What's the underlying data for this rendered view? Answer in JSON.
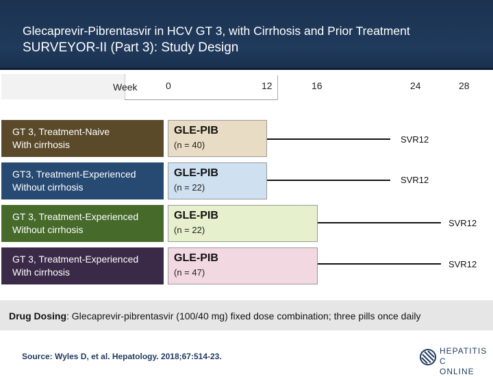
{
  "header": {
    "title_line1": "Glecaprevir-Pibrentasvir in HCV GT 3, with Cirrhosis and Prior Treatment",
    "title_line2": "SURVEYOR-II (Part 3): Study Design"
  },
  "timeline": {
    "label": "Week",
    "ticks": [
      "0",
      "12",
      "16",
      "24",
      "28"
    ]
  },
  "rows": [
    {
      "line1": "GT 3, Treatment-Naive",
      "line2": "With cirrhosis",
      "drug": "GLE-PIB",
      "n": "(n = 40)",
      "svr": "SVR12",
      "label_color": "#5a4a2a",
      "bar_color": "#e8dcc4"
    },
    {
      "line1": "GT3, Treatment-Experienced",
      "line2": "Without cirrhosis",
      "drug": "GLE-PIB",
      "n": "(n = 22)",
      "svr": "SVR12",
      "label_color": "#274a72",
      "bar_color": "#cfe0f0"
    },
    {
      "line1": "GT 3, Treatment-Experienced",
      "line2": "Without cirrhosis",
      "drug": "GLE-PIB",
      "n": "(n = 22)",
      "svr": "SVR12",
      "label_color": "#466a2a",
      "bar_color": "#e6f0cc"
    },
    {
      "line1": "GT 3, Treatment-Experienced",
      "line2": "With cirrhosis",
      "drug": "GLE-PIB",
      "n": "(n = 47)",
      "svr": "SVR12",
      "label_color": "#3a2a48",
      "bar_color": "#f2d8e0"
    }
  ],
  "dosing": {
    "label": "Drug Dosing",
    "text": ": Glecaprevir-pibrentasvir (100/40 mg) fixed dose combination; three pills once daily"
  },
  "source": "Source: Wyles D, et al.  Hepatology. 2018;67:514-23.",
  "logo": {
    "line1": "HEPATITIS C",
    "line2": "ONLINE"
  }
}
